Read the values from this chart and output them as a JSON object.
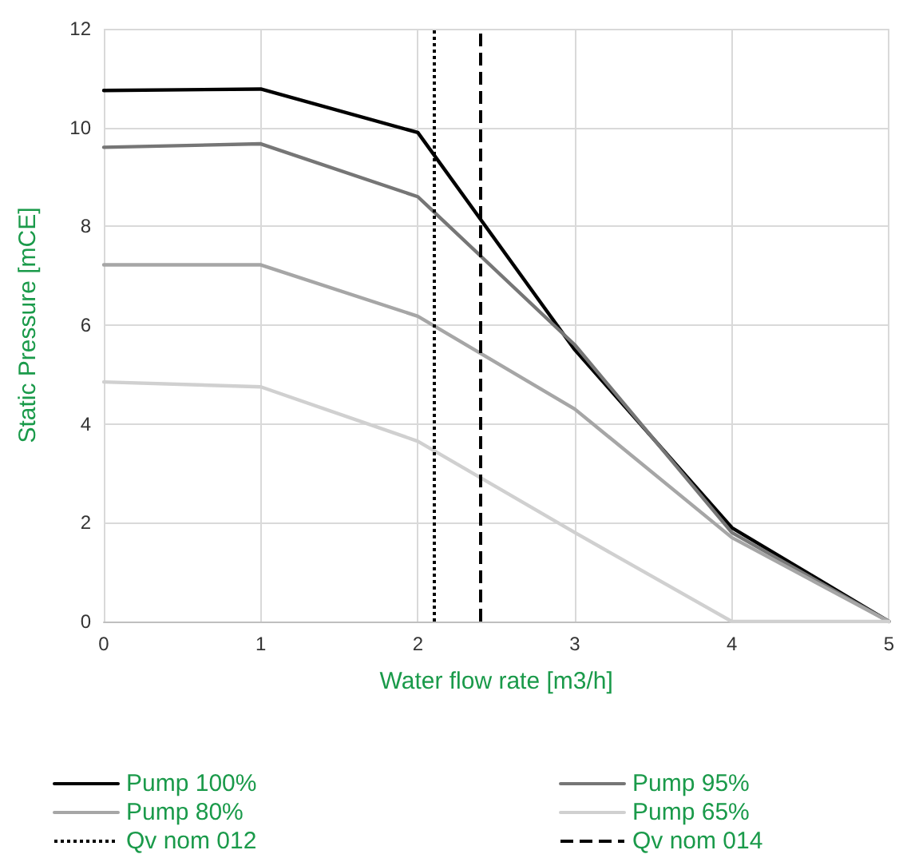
{
  "chart_data": {
    "type": "line",
    "xlabel": "Water flow rate [m3/h]",
    "ylabel": "Static Pressure [mCE]",
    "x": [
      0,
      1,
      2,
      3,
      4,
      5
    ],
    "series": [
      {
        "name": "Pump 100%",
        "color": "#000000",
        "values": [
          10.75,
          10.78,
          9.9,
          5.5,
          1.9,
          0
        ]
      },
      {
        "name": "Pump 95%",
        "color": "#767676",
        "values": [
          9.6,
          9.67,
          8.6,
          5.6,
          1.8,
          0
        ]
      },
      {
        "name": "Pump 80%",
        "color": "#a6a6a6",
        "values": [
          7.22,
          7.22,
          6.18,
          4.3,
          1.7,
          0
        ]
      },
      {
        "name": "Pump 65%",
        "color": "#d0d0d0",
        "values": [
          4.85,
          4.75,
          3.65,
          1.8,
          0,
          0
        ]
      }
    ],
    "ref_lines": [
      {
        "axis": "x",
        "value": 2.1,
        "label": "Qv nom 012",
        "color": "#000000",
        "line_style": "dotted"
      },
      {
        "axis": "x",
        "value": 2.4,
        "label": "Qv nom 014",
        "color": "#000000",
        "line_style": "dashed"
      }
    ],
    "xlim": [
      0,
      5
    ],
    "xticks": [
      0,
      1,
      2,
      3,
      4,
      5
    ],
    "ylim": [
      0,
      12
    ],
    "yticks": [
      0,
      2,
      4,
      6,
      8,
      10,
      12
    ],
    "grid": true,
    "legend": "bottom",
    "marker": "none",
    "line_style": "solid"
  }
}
